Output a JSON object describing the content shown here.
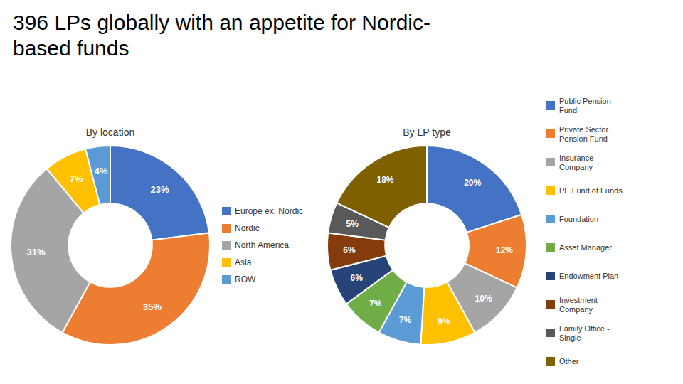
{
  "title": "396 LPs globally with an appetite for Nordic-\nbased funds",
  "chart_data": [
    {
      "type": "pie",
      "title": "By location",
      "categories": [
        "Europe ex. Nordic",
        "Nordic",
        "North America",
        "Asia",
        "ROW"
      ],
      "values": [
        23,
        35,
        31,
        7,
        4
      ],
      "value_labels": [
        "23%",
        "35%",
        "31%",
        "7%",
        "4%"
      ],
      "colors": [
        "#4472C4",
        "#ED7D31",
        "#A5A5A5",
        "#FFC000",
        "#5B9BD5"
      ],
      "data_labels": true,
      "legend": "right"
    },
    {
      "type": "pie",
      "title": "By LP type",
      "categories": [
        "Public Pension\nFund",
        "Private Sector\nPension Fund",
        "Insurance\nCompany",
        "PE Fund of Funds",
        "Foundation",
        "Asset Manager",
        "Endowment Plan",
        "Investment\nCompany",
        "Family Office -\nSingle",
        "Other"
      ],
      "values": [
        20,
        12,
        10,
        9,
        7,
        7,
        6,
        6,
        5,
        18
      ],
      "value_labels": [
        "20%",
        "12%",
        "10%",
        "9%",
        "7%",
        "7%",
        "6%",
        "6%",
        "5%",
        "18%"
      ],
      "colors": [
        "#4472C4",
        "#ED7D31",
        "#A5A5A5",
        "#FFC000",
        "#5B9BD5",
        "#70AD47",
        "#264478",
        "#843C0C",
        "#595959",
        "#7F6000"
      ],
      "data_labels": true,
      "legend": "right"
    }
  ]
}
